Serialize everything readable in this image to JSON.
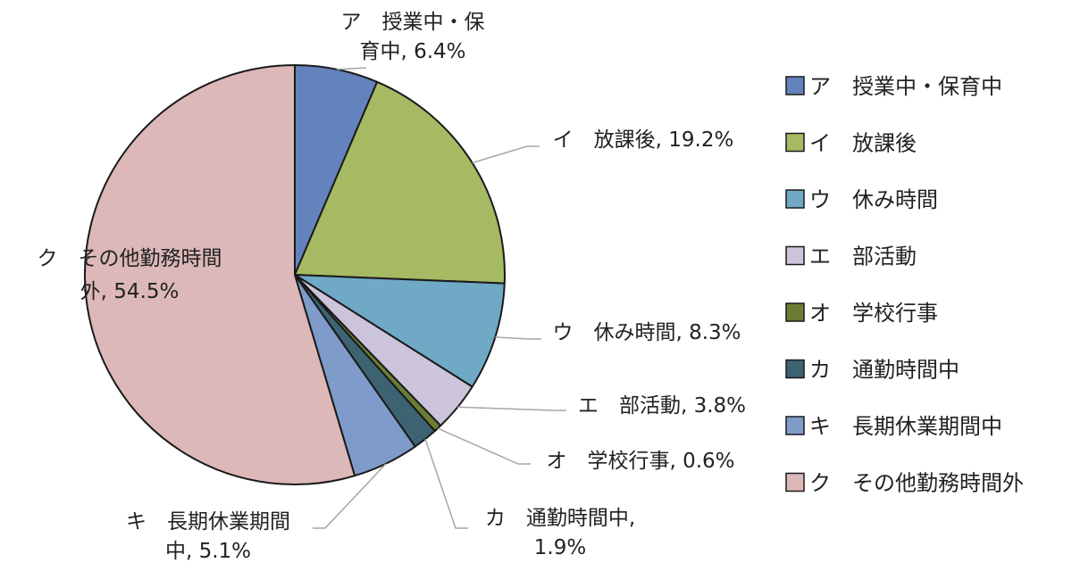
{
  "chart_data": {
    "type": "pie",
    "title": "",
    "slices": [
      {
        "label": "ア　授業中・保育中",
        "value": 6.4,
        "color": "#6482bc"
      },
      {
        "label": "イ　放課後",
        "value": 19.2,
        "color": "#a5ba62"
      },
      {
        "label": "ウ　休み時間",
        "value": 8.3,
        "color": "#6fa9c6"
      },
      {
        "label": "エ　部活動",
        "value": 3.8,
        "color": "#ccc4da"
      },
      {
        "label": "オ　学校行事",
        "value": 0.6,
        "color": "#6a7d35"
      },
      {
        "label": "カ　通勤時間中",
        "value": 1.9,
        "color": "#3d6373"
      },
      {
        "label": "キ　長期休業期間中",
        "value": 5.1,
        "color": "#7f9bc9"
      },
      {
        "label": "ク　その他勤務時間外",
        "value": 54.5,
        "color": "#dcb8b8"
      }
    ],
    "data_labels": [
      [
        "ア　授業中・保",
        "育中, 6.4%"
      ],
      [
        "イ　放課後, 19.2%"
      ],
      [
        "ウ　休み時間, 8.3%"
      ],
      [
        "エ　部活動, 3.8%"
      ],
      [
        "オ　学校行事, 0.6%"
      ],
      [
        "カ　通勤時間中,",
        "1.9%"
      ],
      [
        "キ　長期休業期間",
        "中, 5.1%"
      ],
      [
        "ク　その他勤務時間",
        "外, 54.5%"
      ]
    ],
    "legend": {
      "position": "right",
      "entries": [
        "ア　授業中・保育中",
        "イ　放課後",
        "ウ　休み時間",
        "エ　部活動",
        "オ　学校行事",
        "カ　通勤時間中",
        "キ　長期休業期間中",
        "ク　その他勤務時間外"
      ]
    }
  }
}
